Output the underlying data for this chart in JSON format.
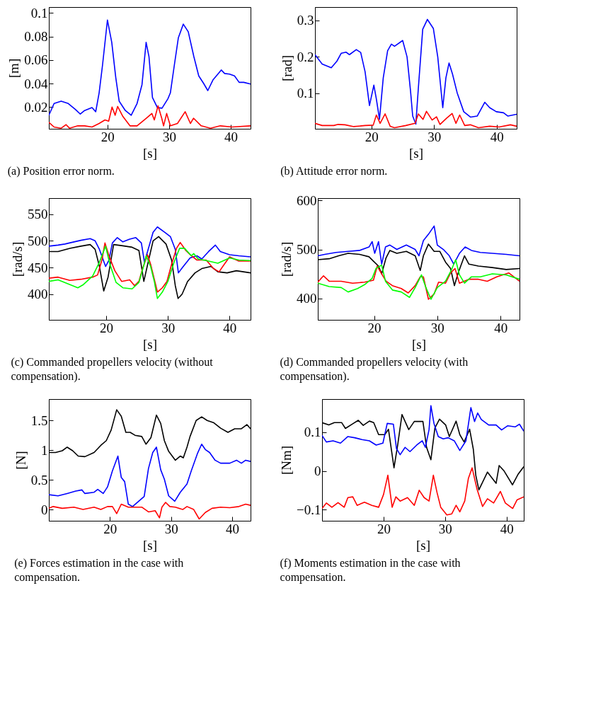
{
  "chart_data": [
    {
      "type": "line",
      "title": "(a) Position error norm.",
      "xlabel": "[s]",
      "ylabel": "[m]",
      "xlim": [
        10.5,
        43.2
      ],
      "xticks": [
        20,
        30,
        40
      ],
      "ylim": [
        0.0015,
        0.105
      ],
      "yticks": [
        0.02,
        0.04,
        0.06,
        0.08,
        0.1
      ],
      "series": [
        {
          "color": "#0000ff",
          "x": [
            10.5,
            11.35,
            12.5,
            13.65,
            14.8,
            15.6,
            16.3,
            17.5,
            18.1,
            18.65,
            19.2,
            20.0,
            20.7,
            21.35,
            21.9,
            22.9,
            23.85,
            24.8,
            25.6,
            26.27,
            26.73,
            27.3,
            28.1,
            28.85,
            29.8,
            30.2,
            30.8,
            31.5,
            32.3,
            33.1,
            34.0,
            34.8,
            35.6,
            36.27,
            37.1,
            37.9,
            38.45,
            39.0,
            39.8,
            40.6,
            41.35,
            42.1,
            43.2
          ],
          "values": [
            0.013,
            0.023,
            0.025,
            0.023,
            0.018,
            0.014,
            0.017,
            0.0195,
            0.016,
            0.032,
            0.0555,
            0.094,
            0.075,
            0.045,
            0.025,
            0.017,
            0.013,
            0.023,
            0.039,
            0.075,
            0.063,
            0.028,
            0.0195,
            0.019,
            0.027,
            0.032,
            0.054,
            0.079,
            0.0905,
            0.084,
            0.063,
            0.0465,
            0.04,
            0.034,
            0.043,
            0.048,
            0.0515,
            0.0485,
            0.048,
            0.0465,
            0.041,
            0.041,
            0.0395
          ]
        },
        {
          "color": "#ff0000",
          "x": [
            10.5,
            11.35,
            12.5,
            13.3,
            13.85,
            15.2,
            16.3,
            17.5,
            18.65,
            19.6,
            20.2,
            20.75,
            21.25,
            21.65,
            22.5,
            23.65,
            24.8,
            26.3,
            27.2,
            27.6,
            28.2,
            28.8,
            29.1,
            29.6,
            30.2,
            31.35,
            32.6,
            33.45,
            33.95,
            35.2,
            36.7,
            38.3,
            40.2,
            43.2
          ],
          "values": [
            0.007,
            0.003,
            0.002,
            0.005,
            0.002,
            0.004,
            0.004,
            0.003,
            0.006,
            0.009,
            0.008,
            0.02,
            0.013,
            0.0205,
            0.012,
            0.004,
            0.004,
            0.0105,
            0.0145,
            0.009,
            0.021,
            0.0105,
            0.004,
            0.0145,
            0.004,
            0.006,
            0.016,
            0.006,
            0.0105,
            0.004,
            0.002,
            0.004,
            0.003,
            0.004
          ]
        }
      ]
    },
    {
      "type": "line",
      "title": "(b) Attitude error norm.",
      "xlabel": "[s]",
      "ylabel": "[rad]",
      "xlim": [
        11,
        43.2
      ],
      "xticks": [
        20,
        30,
        40
      ],
      "ylim": [
        0.002,
        0.337
      ],
      "yticks": [
        0.1,
        0.2,
        0.3
      ],
      "series": [
        {
          "color": "#0000ff",
          "x": [
            11.0,
            12.15,
            13.6,
            14.5,
            15.2,
            15.95,
            16.5,
            17.6,
            18.3,
            19.0,
            19.7,
            20.4,
            20.8,
            21.3,
            21.9,
            22.6,
            23.2,
            23.7,
            25.0,
            25.7,
            26.25,
            26.6,
            27.1,
            27.5,
            28.2,
            28.95,
            29.9,
            30.6,
            31.4,
            31.9,
            32.4,
            32.95,
            33.7,
            34.75,
            35.85,
            36.9,
            38.1,
            38.9,
            39.95,
            41.1,
            41.8,
            43.2
          ],
          "values": [
            0.206,
            0.18,
            0.17,
            0.188,
            0.21,
            0.213,
            0.206,
            0.22,
            0.212,
            0.159,
            0.066,
            0.122,
            0.084,
            0.028,
            0.142,
            0.217,
            0.235,
            0.229,
            0.245,
            0.2,
            0.107,
            0.037,
            0.015,
            0.113,
            0.276,
            0.303,
            0.278,
            0.2,
            0.06,
            0.142,
            0.183,
            0.153,
            0.101,
            0.049,
            0.034,
            0.037,
            0.075,
            0.06,
            0.049,
            0.046,
            0.037,
            0.042
          ]
        },
        {
          "color": "#ff0000",
          "x": [
            11.0,
            12.15,
            14.0,
            14.7,
            15.8,
            17.2,
            19.0,
            20.3,
            20.8,
            21.4,
            22.2,
            23.0,
            23.7,
            25.5,
            26.98,
            27.5,
            28.25,
            28.8,
            29.7,
            30.4,
            30.96,
            32.0,
            32.9,
            33.5,
            34.1,
            34.9,
            35.8,
            37.1,
            38.9,
            40.4,
            42.2,
            43.2
          ],
          "values": [
            0.017,
            0.011,
            0.011,
            0.014,
            0.013,
            0.008,
            0.011,
            0.012,
            0.04,
            0.017,
            0.043,
            0.009,
            0.005,
            0.011,
            0.017,
            0.043,
            0.028,
            0.05,
            0.026,
            0.035,
            0.014,
            0.031,
            0.044,
            0.017,
            0.04,
            0.011,
            0.013,
            0.005,
            0.009,
            0.007,
            0.013,
            0.009
          ]
        }
      ]
    },
    {
      "type": "line",
      "title": "(c) Commanded propellers velocity (without compensation).",
      "xlabel": "[s]",
      "ylabel": "[rad/s]",
      "xlim": [
        10.7,
        43.4
      ],
      "xticks": [
        20,
        30,
        40
      ],
      "ylim": [
        352,
        580
      ],
      "yticks": [
        400,
        450,
        500,
        550
      ],
      "series": [
        {
          "color": "#0000ff",
          "x": [
            10.7,
            12.2,
            13.3,
            14.4,
            15.9,
            17.4,
            18.2,
            18.9,
            19.9,
            20.45,
            21.0,
            21.8,
            22.7,
            23.8,
            24.8,
            25.7,
            26.2,
            26.8,
            27.6,
            28.3,
            29.5,
            30.4,
            31.2,
            31.7,
            32.5,
            33.6,
            34.7,
            35.5,
            36.6,
            37.7,
            38.5,
            40.0,
            41.5,
            43.4
          ],
          "values": [
            490,
            492,
            494,
            497,
            501,
            504,
            500,
            484,
            452,
            464,
            496,
            506,
            498,
            503,
            506,
            496,
            460,
            484,
            516,
            526,
            516,
            508,
            484,
            440,
            452,
            468,
            472,
            466,
            480,
            492,
            480,
            474,
            472,
            470
          ]
        },
        {
          "color": "#000000",
          "x": [
            10.7,
            12.2,
            14.1,
            15.9,
            17.4,
            18.2,
            18.9,
            19.6,
            20.3,
            21.2,
            22.5,
            24.2,
            25.3,
            26.1,
            26.8,
            27.6,
            28.5,
            29.7,
            30.6,
            31.2,
            31.65,
            32.3,
            33.2,
            34.4,
            35.5,
            37.0,
            38.1,
            39.6,
            41.1,
            43.4
          ],
          "values": [
            480,
            480,
            486,
            490,
            493,
            484,
            452,
            406,
            432,
            493,
            491,
            488,
            482,
            424,
            460,
            500,
            508,
            494,
            464,
            416,
            392,
            400,
            424,
            440,
            448,
            452,
            442,
            440,
            444,
            440
          ]
        },
        {
          "color": "#ff0000",
          "x": [
            10.7,
            12.2,
            14.1,
            15.9,
            17.8,
            18.6,
            19.3,
            19.8,
            20.45,
            21.4,
            22.5,
            23.8,
            24.6,
            25.3,
            25.9,
            26.7,
            27.2,
            27.8,
            28.3,
            29.1,
            29.85,
            30.6,
            31.4,
            32.0,
            32.9,
            33.8,
            34.7,
            36.2,
            37.4,
            38.3,
            38.9,
            40.0,
            41.5,
            43.4
          ],
          "values": [
            430,
            432,
            426,
            428,
            432,
            436,
            464,
            496,
            472,
            444,
            424,
            427,
            416,
            424,
            448,
            474,
            456,
            428,
            404,
            412,
            424,
            456,
            486,
            497,
            482,
            472,
            464,
            464,
            448,
            442,
            452,
            470,
            462,
            462
          ]
        },
        {
          "color": "#00ff00",
          "x": [
            10.7,
            12.2,
            13.7,
            15.4,
            16.3,
            17.8,
            18.9,
            19.9,
            20.6,
            21.6,
            22.7,
            24.2,
            25.3,
            26.1,
            26.5,
            27.2,
            27.8,
            28.3,
            29.1,
            30.0,
            31.0,
            31.9,
            32.7,
            33.8,
            34.2,
            34.9,
            36.6,
            38.1,
            40.0,
            41.5,
            43.4
          ],
          "values": [
            424,
            427,
            420,
            412,
            418,
            434,
            460,
            490,
            456,
            422,
            412,
            410,
            422,
            454,
            472,
            452,
            424,
            392,
            404,
            424,
            460,
            486,
            486,
            472,
            476,
            466,
            462,
            458,
            468,
            464,
            463
          ]
        }
      ]
    },
    {
      "type": "line",
      "title": "(d) Commanded propellers velocity (with compensation).",
      "xlabel": "[s]",
      "ylabel": "[rad/s]",
      "xlim": [
        11.1,
        43
      ],
      "xticks": [
        20,
        30,
        40
      ],
      "ylim": [
        356,
        605
      ],
      "yticks": [
        400,
        500,
        600
      ],
      "series": [
        {
          "color": "#0000ff",
          "x": [
            11.1,
            12.2,
            14.0,
            15.9,
            17.7,
            19.2,
            19.7,
            20.1,
            20.7,
            21.2,
            21.8,
            22.5,
            23.6,
            25.1,
            26.5,
            27.1,
            27.8,
            28.6,
            29.5,
            30.0,
            30.96,
            31.9,
            32.6,
            33.5,
            34.4,
            35.4,
            36.8,
            38.7,
            40.9,
            43.0
          ],
          "values": [
            487,
            490,
            494,
            496,
            498,
            505,
            516,
            492,
            516,
            470,
            505,
            509,
            500,
            509,
            500,
            487,
            518,
            531,
            548,
            509,
            500,
            487,
            470,
            492,
            505,
            498,
            494,
            492,
            490,
            487
          ]
        },
        {
          "color": "#000000",
          "x": [
            11.1,
            12.9,
            14.4,
            15.9,
            17.7,
            19.2,
            19.9,
            20.7,
            21.2,
            21.9,
            22.5,
            23.6,
            25.1,
            26.5,
            27.3,
            27.8,
            28.6,
            29.5,
            30.4,
            31.3,
            32.1,
            32.7,
            33.3,
            34.3,
            35.0,
            36.5,
            38.7,
            40.9,
            43.0
          ],
          "values": [
            479,
            481,
            487,
            492,
            490,
            485,
            476,
            466,
            450,
            483,
            498,
            492,
            496,
            487,
            457,
            487,
            511,
            496,
            496,
            474,
            461,
            426,
            452,
            487,
            470,
            466,
            463,
            459,
            461
          ]
        },
        {
          "color": "#ff0000",
          "x": [
            11.1,
            12.0,
            12.9,
            14.8,
            16.6,
            18.5,
            19.9,
            20.5,
            21.2,
            21.9,
            22.9,
            24.3,
            25.4,
            26.5,
            27.3,
            27.8,
            28.6,
            29.5,
            30.2,
            31.3,
            32.1,
            32.8,
            33.5,
            35.0,
            36.5,
            37.9,
            39.4,
            41.3,
            43.0
          ],
          "values": [
            433,
            446,
            435,
            435,
            431,
            433,
            437,
            466,
            450,
            435,
            426,
            420,
            411,
            426,
            444,
            444,
            398,
            409,
            433,
            431,
            452,
            461,
            431,
            439,
            439,
            435,
            444,
            452,
            435
          ]
        },
        {
          "color": "#00ff00",
          "x": [
            11.1,
            12.9,
            14.8,
            15.9,
            17.4,
            18.5,
            19.7,
            20.3,
            21.2,
            21.8,
            22.9,
            24.3,
            25.6,
            26.5,
            27.5,
            28.2,
            29.0,
            30.0,
            31.3,
            32.2,
            32.9,
            33.5,
            34.3,
            35.4,
            36.8,
            38.7,
            40.9,
            43.0
          ],
          "values": [
            431,
            424,
            422,
            413,
            420,
            428,
            441,
            461,
            468,
            435,
            417,
            413,
            402,
            422,
            448,
            422,
            398,
            422,
            435,
            457,
            479,
            448,
            431,
            444,
            444,
            450,
            448,
            439
          ]
        }
      ]
    },
    {
      "type": "line",
      "title": "(e) Forces estimation in the case with compensation.",
      "xlabel": "[s]",
      "ylabel": "[N]",
      "xlim": [
        10,
        43
      ],
      "xticks": [
        20,
        30,
        40
      ],
      "ylim": [
        -0.19,
        1.86
      ],
      "yticks": [
        0,
        0.5,
        1,
        1.5
      ],
      "series": [
        {
          "color": "#000000",
          "x": [
            10.0,
            11.1,
            12.2,
            13.0,
            13.9,
            14.8,
            15.9,
            17.4,
            18.5,
            19.4,
            20.2,
            21.1,
            21.85,
            22.6,
            23.3,
            24.1,
            25.2,
            25.9,
            26.7,
            27.6,
            28.3,
            28.9,
            29.6,
            30.7,
            31.5,
            32.0,
            32.6,
            33.1,
            34.1,
            35.0,
            35.9,
            37.0,
            38.1,
            39.3,
            40.4,
            41.5,
            42.4,
            43.0
          ],
          "values": [
            0.96,
            0.96,
            0.99,
            1.05,
            0.99,
            0.9,
            0.89,
            0.96,
            1.08,
            1.16,
            1.34,
            1.68,
            1.57,
            1.3,
            1.3,
            1.25,
            1.23,
            1.1,
            1.21,
            1.59,
            1.45,
            1.16,
            0.98,
            0.83,
            0.9,
            0.87,
            1.05,
            1.23,
            1.5,
            1.56,
            1.5,
            1.46,
            1.37,
            1.3,
            1.36,
            1.36,
            1.43,
            1.36
          ]
        },
        {
          "color": "#0000ff",
          "x": [
            10.0,
            11.5,
            13.0,
            14.4,
            15.4,
            15.9,
            17.4,
            18.0,
            18.9,
            19.6,
            20.4,
            21.3,
            21.85,
            22.4,
            23.0,
            23.7,
            24.6,
            25.6,
            26.3,
            27.0,
            27.6,
            28.3,
            28.9,
            29.6,
            30.6,
            31.5,
            32.6,
            33.3,
            34.3,
            35.0,
            35.6,
            36.3,
            37.2,
            38.1,
            39.6,
            40.7,
            41.5,
            42.2,
            43.0
          ],
          "values": [
            0.25,
            0.23,
            0.27,
            0.31,
            0.33,
            0.27,
            0.29,
            0.34,
            0.27,
            0.38,
            0.65,
            0.9,
            0.54,
            0.47,
            0.09,
            0.05,
            0.13,
            0.22,
            0.69,
            0.96,
            1.05,
            0.67,
            0.51,
            0.23,
            0.14,
            0.29,
            0.43,
            0.65,
            0.94,
            1.1,
            1.01,
            0.96,
            0.83,
            0.78,
            0.78,
            0.83,
            0.78,
            0.83,
            0.81
          ]
        },
        {
          "color": "#ff0000",
          "x": [
            10.0,
            10.7,
            12.2,
            14.1,
            15.6,
            17.4,
            18.5,
            19.6,
            20.4,
            21.1,
            21.85,
            23.0,
            24.1,
            25.2,
            26.3,
            27.4,
            28.1,
            28.5,
            29.1,
            29.8,
            30.7,
            31.9,
            32.6,
            33.7,
            34.6,
            35.6,
            36.7,
            38.1,
            39.6,
            41.1,
            42.2,
            43.0
          ],
          "values": [
            0.02,
            0.05,
            0.02,
            0.04,
            0.0,
            0.04,
            0.0,
            0.05,
            0.05,
            -0.07,
            0.09,
            0.04,
            0.04,
            0.04,
            -0.04,
            -0.02,
            -0.14,
            0.04,
            0.12,
            0.05,
            0.04,
            0.0,
            0.05,
            0.0,
            -0.16,
            -0.05,
            0.02,
            0.04,
            0.03,
            0.05,
            0.09,
            0.07
          ]
        }
      ]
    },
    {
      "type": "line",
      "title": "(f) Moments estimation in the case with compensation.",
      "xlabel": "[s]",
      "ylabel": "[Nm]",
      "xlim": [
        10,
        42.8
      ],
      "xticks": [
        20,
        30,
        40
      ],
      "ylim": [
        -0.129,
        0.186
      ],
      "yticks": [
        {
          "value": -0.1,
          "label": "−0.1"
        },
        0,
        0.1
      ],
      "series": [
        {
          "color": "#000000",
          "x": [
            10.0,
            11.1,
            12.0,
            13.2,
            13.8,
            15.0,
            15.9,
            16.7,
            17.7,
            18.4,
            19.2,
            20.2,
            20.8,
            21.7,
            22.3,
            23.0,
            24.1,
            25.0,
            26.4,
            27.0,
            27.7,
            28.35,
            29.1,
            30.1,
            30.7,
            31.8,
            32.4,
            33.1,
            34.0,
            34.6,
            35.0,
            35.5,
            36.9,
            38.3,
            38.8,
            39.6,
            40.97,
            41.9,
            42.8
          ],
          "values": [
            0.125,
            0.119,
            0.125,
            0.125,
            0.11,
            0.122,
            0.131,
            0.118,
            0.129,
            0.125,
            0.094,
            0.094,
            0.108,
            0.008,
            0.067,
            0.146,
            0.107,
            0.128,
            0.128,
            0.061,
            0.029,
            0.111,
            0.134,
            0.119,
            0.089,
            0.129,
            0.094,
            0.075,
            0.108,
            0.056,
            -0.011,
            -0.049,
            -0.003,
            -0.032,
            0.014,
            0.0,
            -0.036,
            -0.008,
            0.011
          ]
        },
        {
          "color": "#0000ff",
          "x": [
            10.0,
            10.7,
            11.8,
            13.0,
            14.2,
            15.3,
            16.5,
            17.7,
            18.8,
            19.9,
            20.6,
            21.6,
            22.1,
            22.7,
            23.5,
            24.3,
            25.4,
            26.3,
            26.8,
            27.4,
            27.7,
            28.2,
            28.9,
            29.7,
            30.5,
            31.5,
            32.4,
            33.4,
            34.2,
            34.8,
            35.3,
            35.9,
            37.1,
            38.3,
            39.2,
            40.2,
            41.4,
            42.1,
            42.8
          ],
          "values": [
            0.092,
            0.075,
            0.078,
            0.072,
            0.089,
            0.086,
            0.081,
            0.078,
            0.067,
            0.072,
            0.123,
            0.121,
            0.058,
            0.042,
            0.061,
            0.05,
            0.067,
            0.078,
            0.061,
            0.107,
            0.169,
            0.123,
            0.089,
            0.083,
            0.086,
            0.078,
            0.053,
            0.078,
            0.164,
            0.128,
            0.15,
            0.133,
            0.119,
            0.119,
            0.106,
            0.117,
            0.114,
            0.121,
            0.103
          ]
        },
        {
          "color": "#ff0000",
          "x": [
            10.0,
            10.7,
            11.6,
            12.6,
            13.6,
            14.2,
            15.0,
            15.7,
            16.9,
            18.1,
            19.2,
            20.0,
            20.7,
            21.4,
            22.0,
            22.7,
            23.9,
            25.0,
            25.8,
            26.6,
            27.4,
            28.1,
            28.7,
            29.3,
            30.3,
            31.1,
            31.8,
            32.4,
            33.2,
            33.8,
            34.4,
            35.2,
            36.1,
            36.9,
            37.9,
            39.0,
            39.8,
            41.0,
            41.7,
            42.8
          ],
          "values": [
            -0.097,
            -0.083,
            -0.094,
            -0.082,
            -0.094,
            -0.069,
            -0.067,
            -0.089,
            -0.081,
            -0.089,
            -0.094,
            -0.061,
            -0.011,
            -0.094,
            -0.067,
            -0.078,
            -0.069,
            -0.089,
            -0.05,
            -0.069,
            -0.078,
            -0.011,
            -0.056,
            -0.094,
            -0.114,
            -0.111,
            -0.089,
            -0.106,
            -0.078,
            -0.019,
            0.008,
            -0.047,
            -0.092,
            -0.072,
            -0.083,
            -0.053,
            -0.083,
            -0.097,
            -0.075,
            -0.067
          ]
        }
      ]
    }
  ]
}
